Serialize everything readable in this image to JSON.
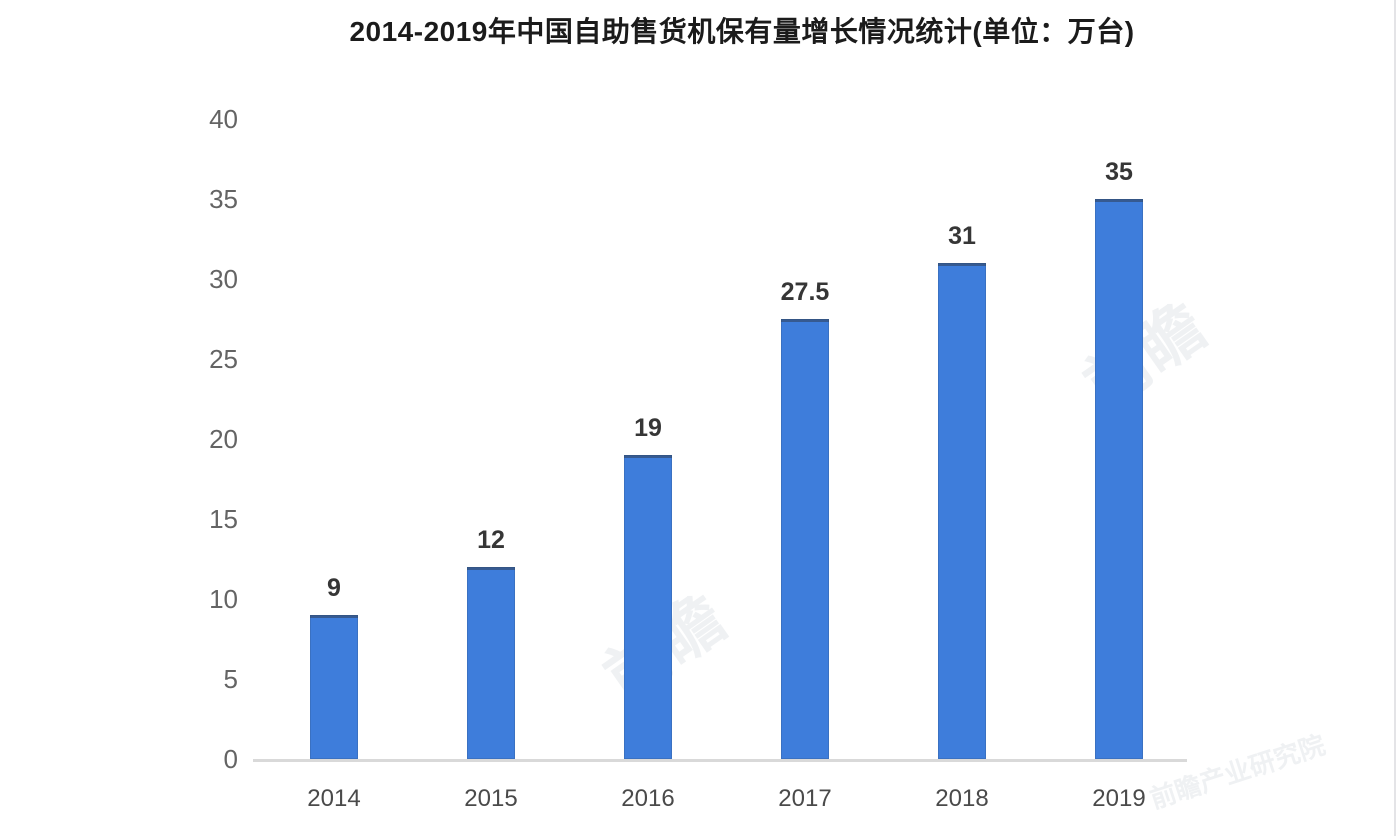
{
  "chart_data": {
    "type": "bar",
    "title": "2014-2019年中国自助售货机保有量增长情况统计(单位：万台)",
    "categories": [
      "2014",
      "2015",
      "2016",
      "2017",
      "2018",
      "2019"
    ],
    "values": [
      9,
      12,
      19,
      27.5,
      31,
      35
    ],
    "ylim": [
      0,
      40
    ],
    "yticks": [
      0,
      5,
      10,
      15,
      20,
      25,
      30,
      35,
      40
    ],
    "xlabel": "",
    "ylabel": "",
    "unit": "万台",
    "bar_color": "#3e7ddb",
    "bar_top_edge_color": "rgba(47,62,84,0.55)",
    "value_label_color": "#363636",
    "tick_label_color": "#646464",
    "axis_line_color": "#d9d9d9",
    "grid": false,
    "legend": "none"
  },
  "watermarks": [
    "前瞻",
    "前瞻",
    "前瞻产业研究院"
  ]
}
